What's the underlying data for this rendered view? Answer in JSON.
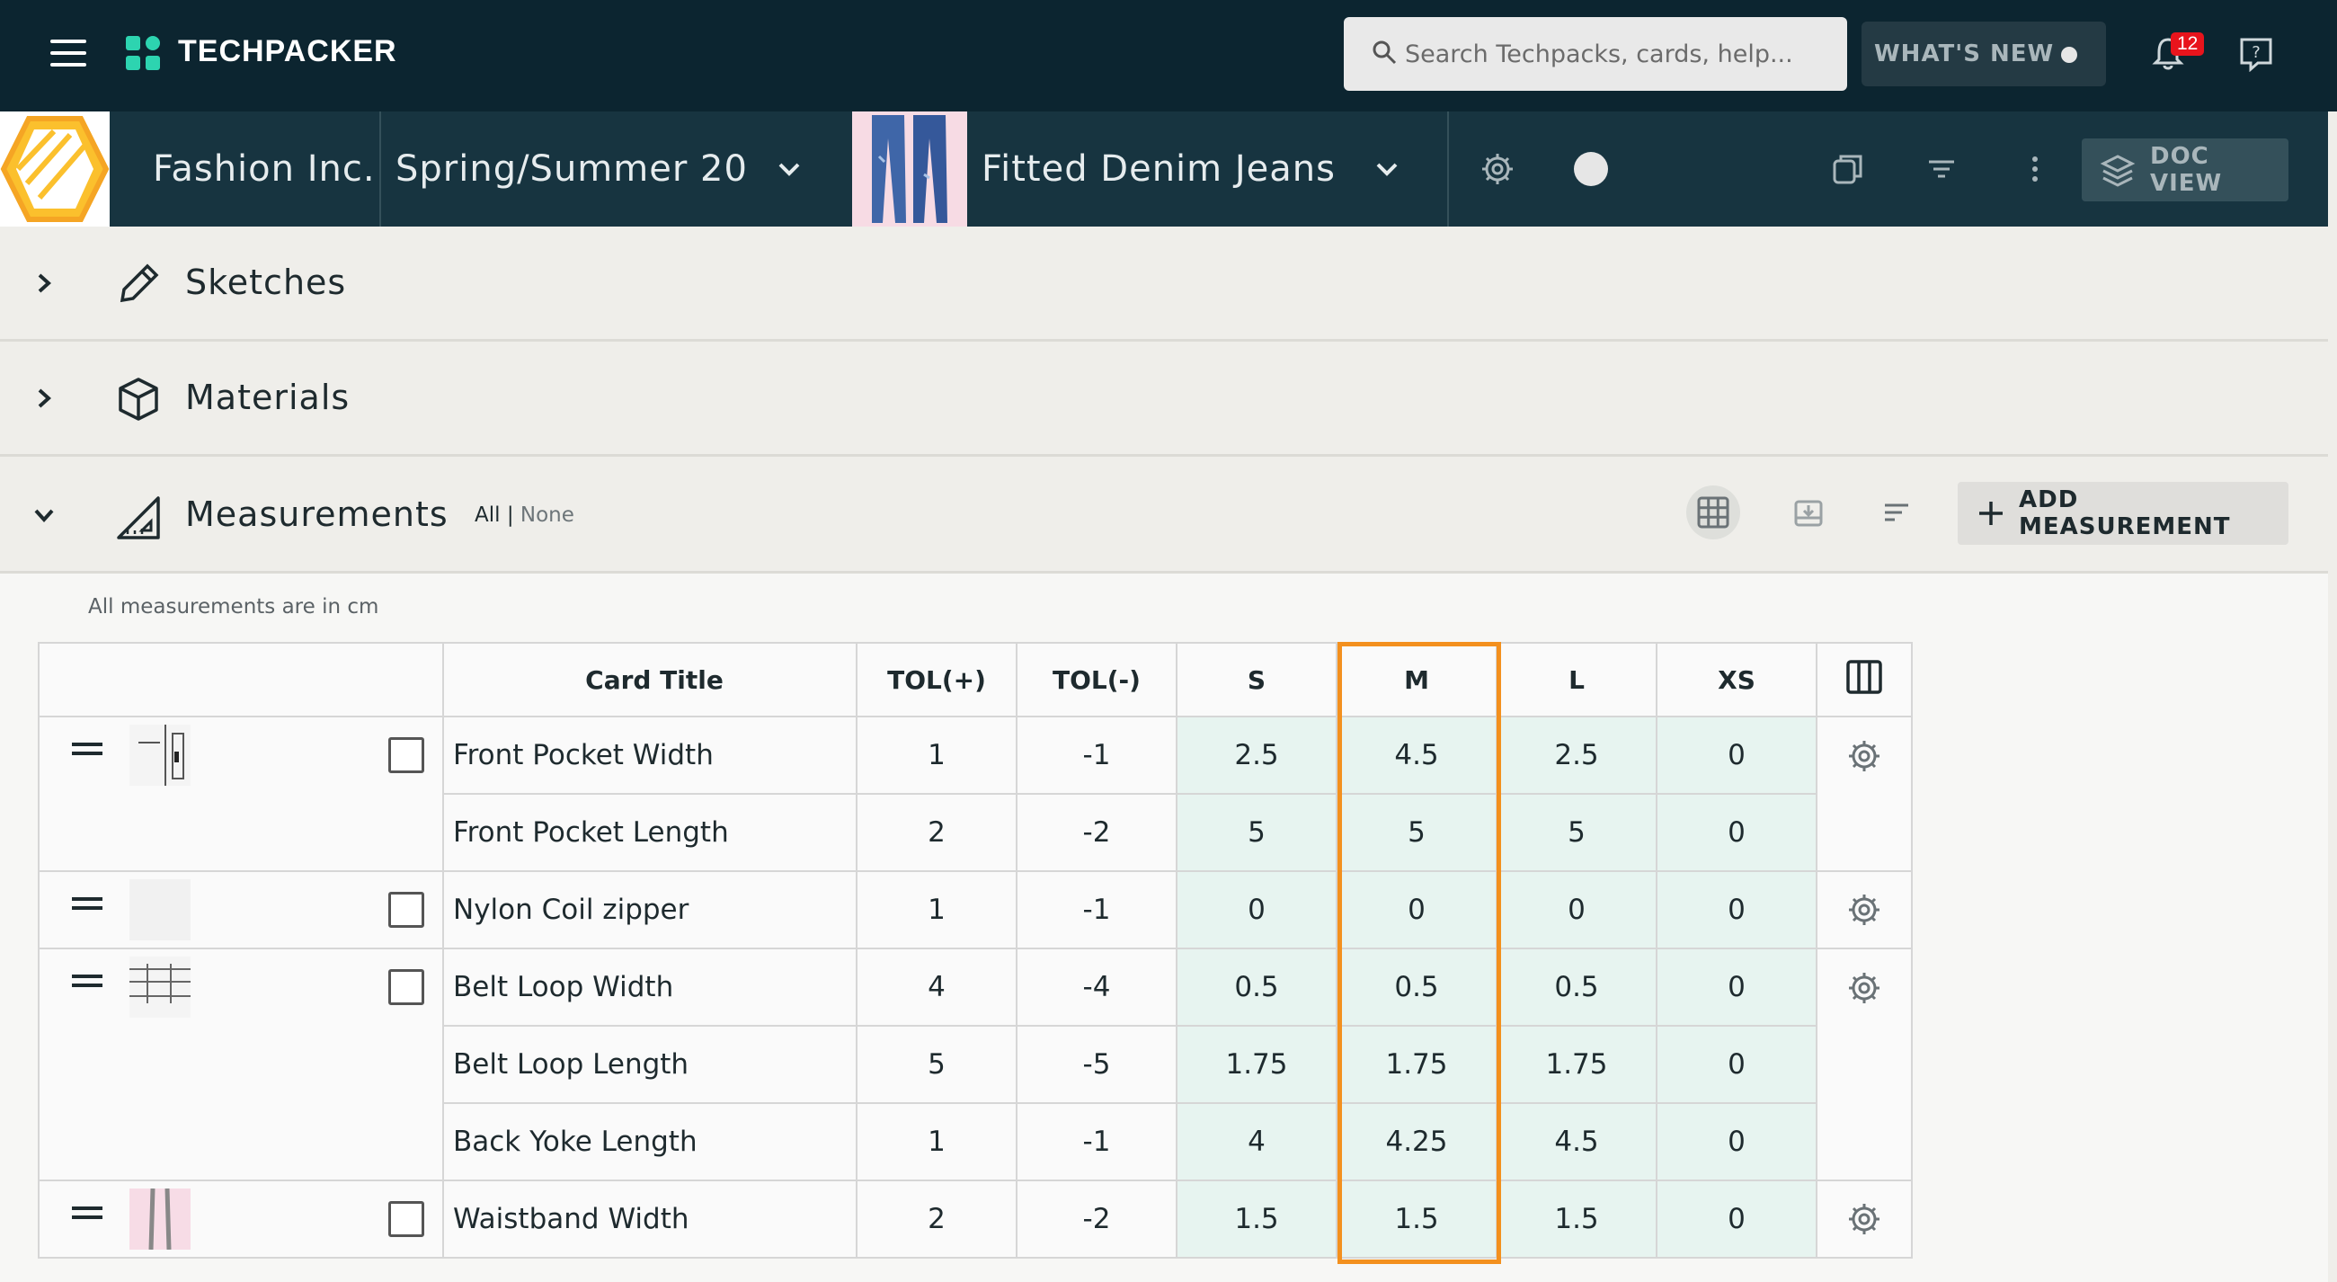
{
  "topbar": {
    "app_name": "TECHPACKER",
    "search_placeholder": "Search Techpacks, cards, help...",
    "whats_new_label": "WHAT'S NEW",
    "notification_count": "12"
  },
  "subbar": {
    "company": "Fashion Inc.",
    "season": "Spring/Summer 20",
    "product": "Fitted Denim Jeans",
    "doc_view_label": "DOC VIEW"
  },
  "sections": {
    "sketches": "Sketches",
    "materials": "Materials",
    "measurements": "Measurements",
    "all_label": "All",
    "separator": " | ",
    "none_label": "None",
    "add_measurement_label": "ADD MEASUREMENT"
  },
  "content": {
    "units_note": "All measurements are in cm"
  },
  "table": {
    "headers": {
      "card_title": "Card Title",
      "tol_plus": "TOL(+)",
      "tol_minus": "TOL(-)",
      "sizes": [
        "S",
        "M",
        "L",
        "XS"
      ]
    },
    "rows": [
      {
        "title": "Front Pocket Width",
        "tol_plus": "1",
        "tol_minus": "-1",
        "s": "2.5",
        "m": "4.5",
        "l": "2.5",
        "xs": "0"
      },
      {
        "title": "Front Pocket Length",
        "tol_plus": "2",
        "tol_minus": "-2",
        "s": "5",
        "m": "5",
        "l": "5",
        "xs": "0"
      },
      {
        "title": "Nylon Coil zipper",
        "tol_plus": "1",
        "tol_minus": "-1",
        "s": "0",
        "m": "0",
        "l": "0",
        "xs": "0"
      },
      {
        "title": "Belt Loop Width",
        "tol_plus": "4",
        "tol_minus": "-4",
        "s": "0.5",
        "m": "0.5",
        "l": "0.5",
        "xs": "0"
      },
      {
        "title": "Belt Loop Length",
        "tol_plus": "5",
        "tol_minus": "-5",
        "s": "1.75",
        "m": "1.75",
        "l": "1.75",
        "xs": "0"
      },
      {
        "title": "Back Yoke Length",
        "tol_plus": "1",
        "tol_minus": "-1",
        "s": "4",
        "m": "4.25",
        "l": "4.5",
        "xs": "0"
      },
      {
        "title": "Waistband Width",
        "tol_plus": "2",
        "tol_minus": "-2",
        "s": "1.5",
        "m": "1.5",
        "l": "1.5",
        "xs": "0"
      }
    ]
  },
  "colors": {
    "topbar_bg": "#0c2530",
    "subbar_bg": "#173440",
    "accent_teal": "#1ec8a5",
    "highlight_orange": "#f3901e",
    "size_cell_bg": "#e7f4f0",
    "badge_red": "#e8141c"
  }
}
